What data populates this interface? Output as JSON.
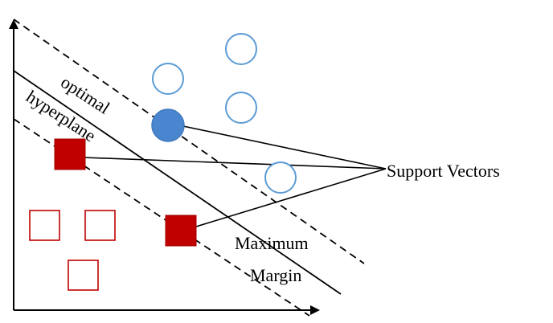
{
  "labels": {
    "optimal": "optimal",
    "hyperplane": "hyperplane",
    "support_vectors": "Support Vectors",
    "maximum": "Maximum",
    "margin": "Margin"
  },
  "colors": {
    "circle_stroke": "#5b9bd5",
    "circle_fill_support": "#4a86cf",
    "square_stroke": "#c00000",
    "square_fill_support": "#c00000",
    "line": "#000000",
    "background": "#ffffff"
  },
  "legend": {
    "circle_class": "open blue circles",
    "square_class": "open red squares"
  }
}
